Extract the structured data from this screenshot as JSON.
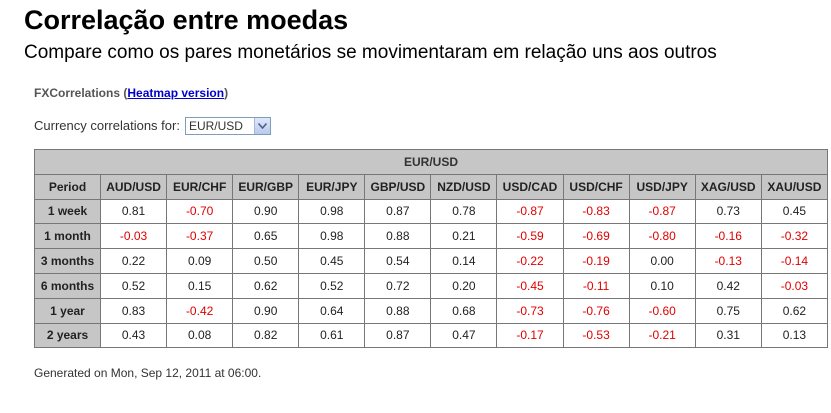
{
  "page": {
    "title": "Correlação entre moedas",
    "subtitle": "Compare como os pares monetários se movimentaram em relação uns aos outros"
  },
  "brand": {
    "name": "FXCorrelations",
    "open_paren": " (",
    "link_label": "Heatmap version",
    "close_paren": ")"
  },
  "selector": {
    "label": "Currency correlations for:",
    "selected": "EUR/USD"
  },
  "table": {
    "caption": "EUR/USD",
    "period_header": "Period",
    "columns": [
      "AUD/USD",
      "EUR/CHF",
      "EUR/GBP",
      "EUR/JPY",
      "GBP/USD",
      "NZD/USD",
      "USD/CAD",
      "USD/CHF",
      "USD/JPY",
      "XAG/USD",
      "XAU/USD"
    ],
    "rows": [
      {
        "period": "1 week",
        "values": [
          "0.81",
          "-0.70",
          "0.90",
          "0.98",
          "0.87",
          "0.78",
          "-0.87",
          "-0.83",
          "-0.87",
          "0.73",
          "0.45"
        ]
      },
      {
        "period": "1 month",
        "values": [
          "-0.03",
          "-0.37",
          "0.65",
          "0.98",
          "0.88",
          "0.21",
          "-0.59",
          "-0.69",
          "-0.80",
          "-0.16",
          "-0.32"
        ]
      },
      {
        "period": "3 months",
        "values": [
          "0.22",
          "0.09",
          "0.50",
          "0.45",
          "0.54",
          "0.14",
          "-0.22",
          "-0.19",
          "0.00",
          "-0.13",
          "-0.14"
        ]
      },
      {
        "period": "6 months",
        "values": [
          "0.52",
          "0.15",
          "0.62",
          "0.52",
          "0.72",
          "0.20",
          "-0.45",
          "-0.11",
          "0.10",
          "0.42",
          "-0.03"
        ]
      },
      {
        "period": "1 year",
        "values": [
          "0.83",
          "-0.42",
          "0.90",
          "0.64",
          "0.88",
          "0.68",
          "-0.73",
          "-0.76",
          "-0.60",
          "0.75",
          "0.62"
        ]
      },
      {
        "period": "2 years",
        "values": [
          "0.43",
          "0.08",
          "0.82",
          "0.61",
          "0.87",
          "0.47",
          "-0.17",
          "-0.53",
          "-0.21",
          "0.31",
          "0.13"
        ]
      }
    ]
  },
  "footer": {
    "text": "Generated on Mon, Sep 12, 2011 at 06:00."
  },
  "colors": {
    "negative": "#e00000",
    "header_bg": "#c6c6c6",
    "link": "#0000cc"
  }
}
